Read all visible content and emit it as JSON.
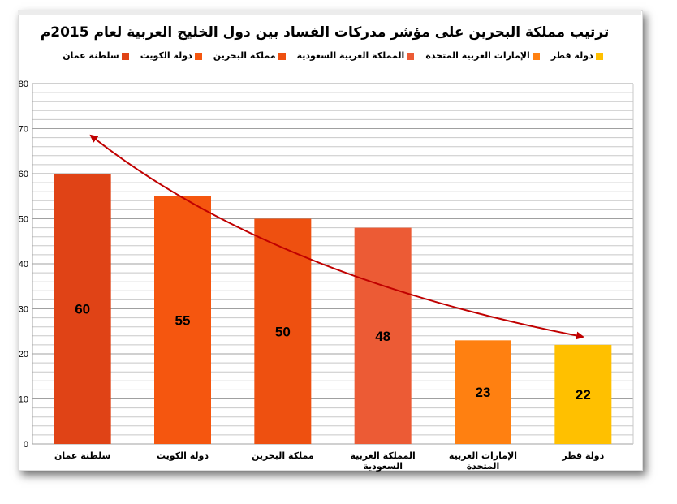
{
  "chart_data": {
    "type": "bar",
    "title": "ترتيب مملكة البحرين على مؤشر مدركات الفساد بين دول الخليج العربية لعام 2015م",
    "categories": [
      "سلطنة عمان",
      "دولة الكويت",
      "مملكة البحرين",
      "المملكة العربية السعودية",
      "الإمارات العربية المتحدة",
      "دولة قطر"
    ],
    "values": [
      60,
      55,
      50,
      48,
      23,
      22
    ],
    "colors": [
      "#E04316",
      "#F5560F",
      "#EE5010",
      "#EC5B35",
      "#FF8011",
      "#FFC000"
    ],
    "legend": [
      "دولة قطر",
      "الإمارات العربية المتحدة",
      "المملكة العربية السعودية",
      "مملكة البحرين",
      "دولة الكويت",
      "سلطنة عمان"
    ],
    "legend_placement": "top",
    "xlabel": "",
    "ylabel": "",
    "ylim": [
      0,
      80
    ],
    "yticks": [
      0,
      10,
      20,
      30,
      40,
      50,
      60,
      70,
      80
    ],
    "minor_grid_step": 2,
    "grid": true,
    "annotation": "double-headed curved arrow showing decreasing trend",
    "arrow_color": "#C00000"
  }
}
